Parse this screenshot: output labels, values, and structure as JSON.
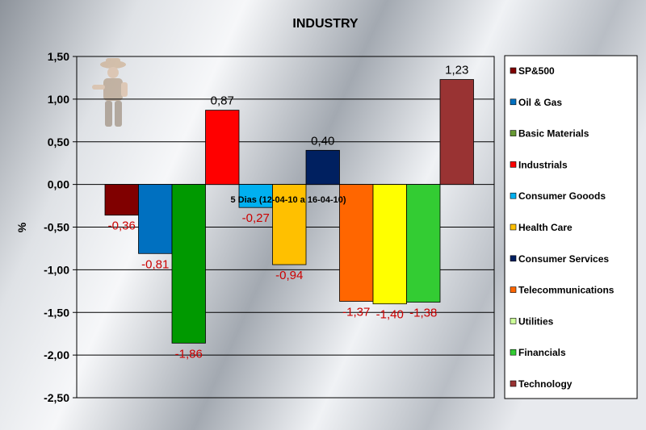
{
  "chart_data": {
    "type": "bar",
    "title": "INDUSTRY",
    "ylabel": "%",
    "annotation": "5 Dias (12-04-10 a 16-04-10)",
    "ylim": [
      -2.5,
      1.5
    ],
    "yticks": [
      "1,50",
      "1,00",
      "0,50",
      "0,00",
      "-0,50",
      "-1,00",
      "-1,50",
      "-2,00",
      "-2,50"
    ],
    "ytick_values": [
      1.5,
      1.0,
      0.5,
      0.0,
      -0.5,
      -1.0,
      -1.5,
      -2.0,
      -2.5
    ],
    "grid": true,
    "legend_position": "right",
    "categories": [
      "SP&500",
      "Oil & Gas",
      "Basic Materials",
      "Industrials",
      "Consumer Gooods",
      "Health Care",
      "Consumer Services",
      "Telecommunications",
      "Utilities",
      "Financials",
      "Technology"
    ],
    "values": [
      -0.36,
      -0.81,
      -1.86,
      0.87,
      -0.27,
      -0.94,
      0.4,
      -1.37,
      -1.4,
      -1.38,
      1.23
    ],
    "value_labels": [
      "-0,36",
      "-0,81",
      "-1,86",
      "0,87",
      "-0,27",
      "-0,94",
      "0,40",
      "-1,37",
      "-1,40",
      "-1,38",
      "1,23"
    ],
    "colors": [
      "#800000",
      "#0070C0",
      "#009900",
      "#FF0000",
      "#00B0F0",
      "#FFC000",
      "#002060",
      "#FF6600",
      "#FFFF00",
      "#33CC33",
      "#993333"
    ],
    "legend_colors": [
      "#800000",
      "#0070C0",
      "#669933",
      "#FF0000",
      "#00B0F0",
      "#FFC000",
      "#002060",
      "#FF6600",
      "#CCFF99",
      "#33CC33",
      "#993333"
    ],
    "label_colors": {
      "negative": "#CC0000",
      "positive": "#000000"
    }
  }
}
